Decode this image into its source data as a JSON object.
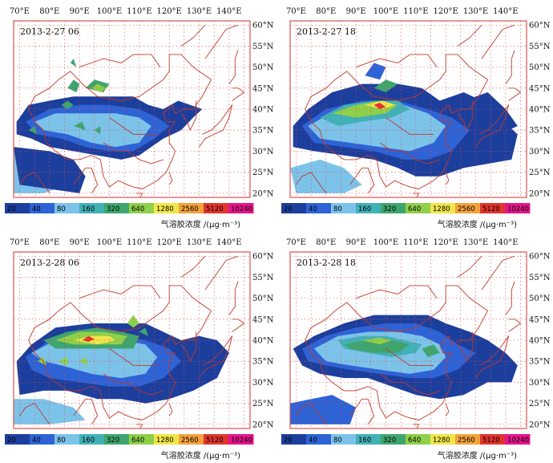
{
  "lon_labels": [
    "70°E",
    "80°E",
    "90°E",
    "100°E",
    "110°E",
    "120°E",
    "130°E",
    "140°E"
  ],
  "lat_labels": [
    "60°N",
    "55°N",
    "50°N",
    "45°N",
    "40°N",
    "35°N",
    "30°N",
    "25°N",
    "20°N"
  ],
  "colorbar": {
    "labels": [
      "20",
      "40",
      "80",
      "160",
      "320",
      "640",
      "1280",
      "2560",
      "5120",
      "10240"
    ],
    "colors": [
      "#1c3f9e",
      "#2e63d6",
      "#7cc3ea",
      "#41b1b8",
      "#3fa56e",
      "#8fcf4a",
      "#f0e64a",
      "#f3a23b",
      "#e0352e",
      "#e5148c"
    ],
    "title": "气溶胶浓度 /(μg·m⁻³)"
  },
  "colors": {
    "border": "#c0392b",
    "grid": "#d64a4a",
    "frame": "#d9534f"
  },
  "panels": [
    {
      "timestamp": "2013-2-27 06"
    },
    {
      "timestamp": "2013-2-27 18"
    },
    {
      "timestamp": "2013-2-28 06"
    },
    {
      "timestamp": "2013-2-28 18"
    }
  ]
}
